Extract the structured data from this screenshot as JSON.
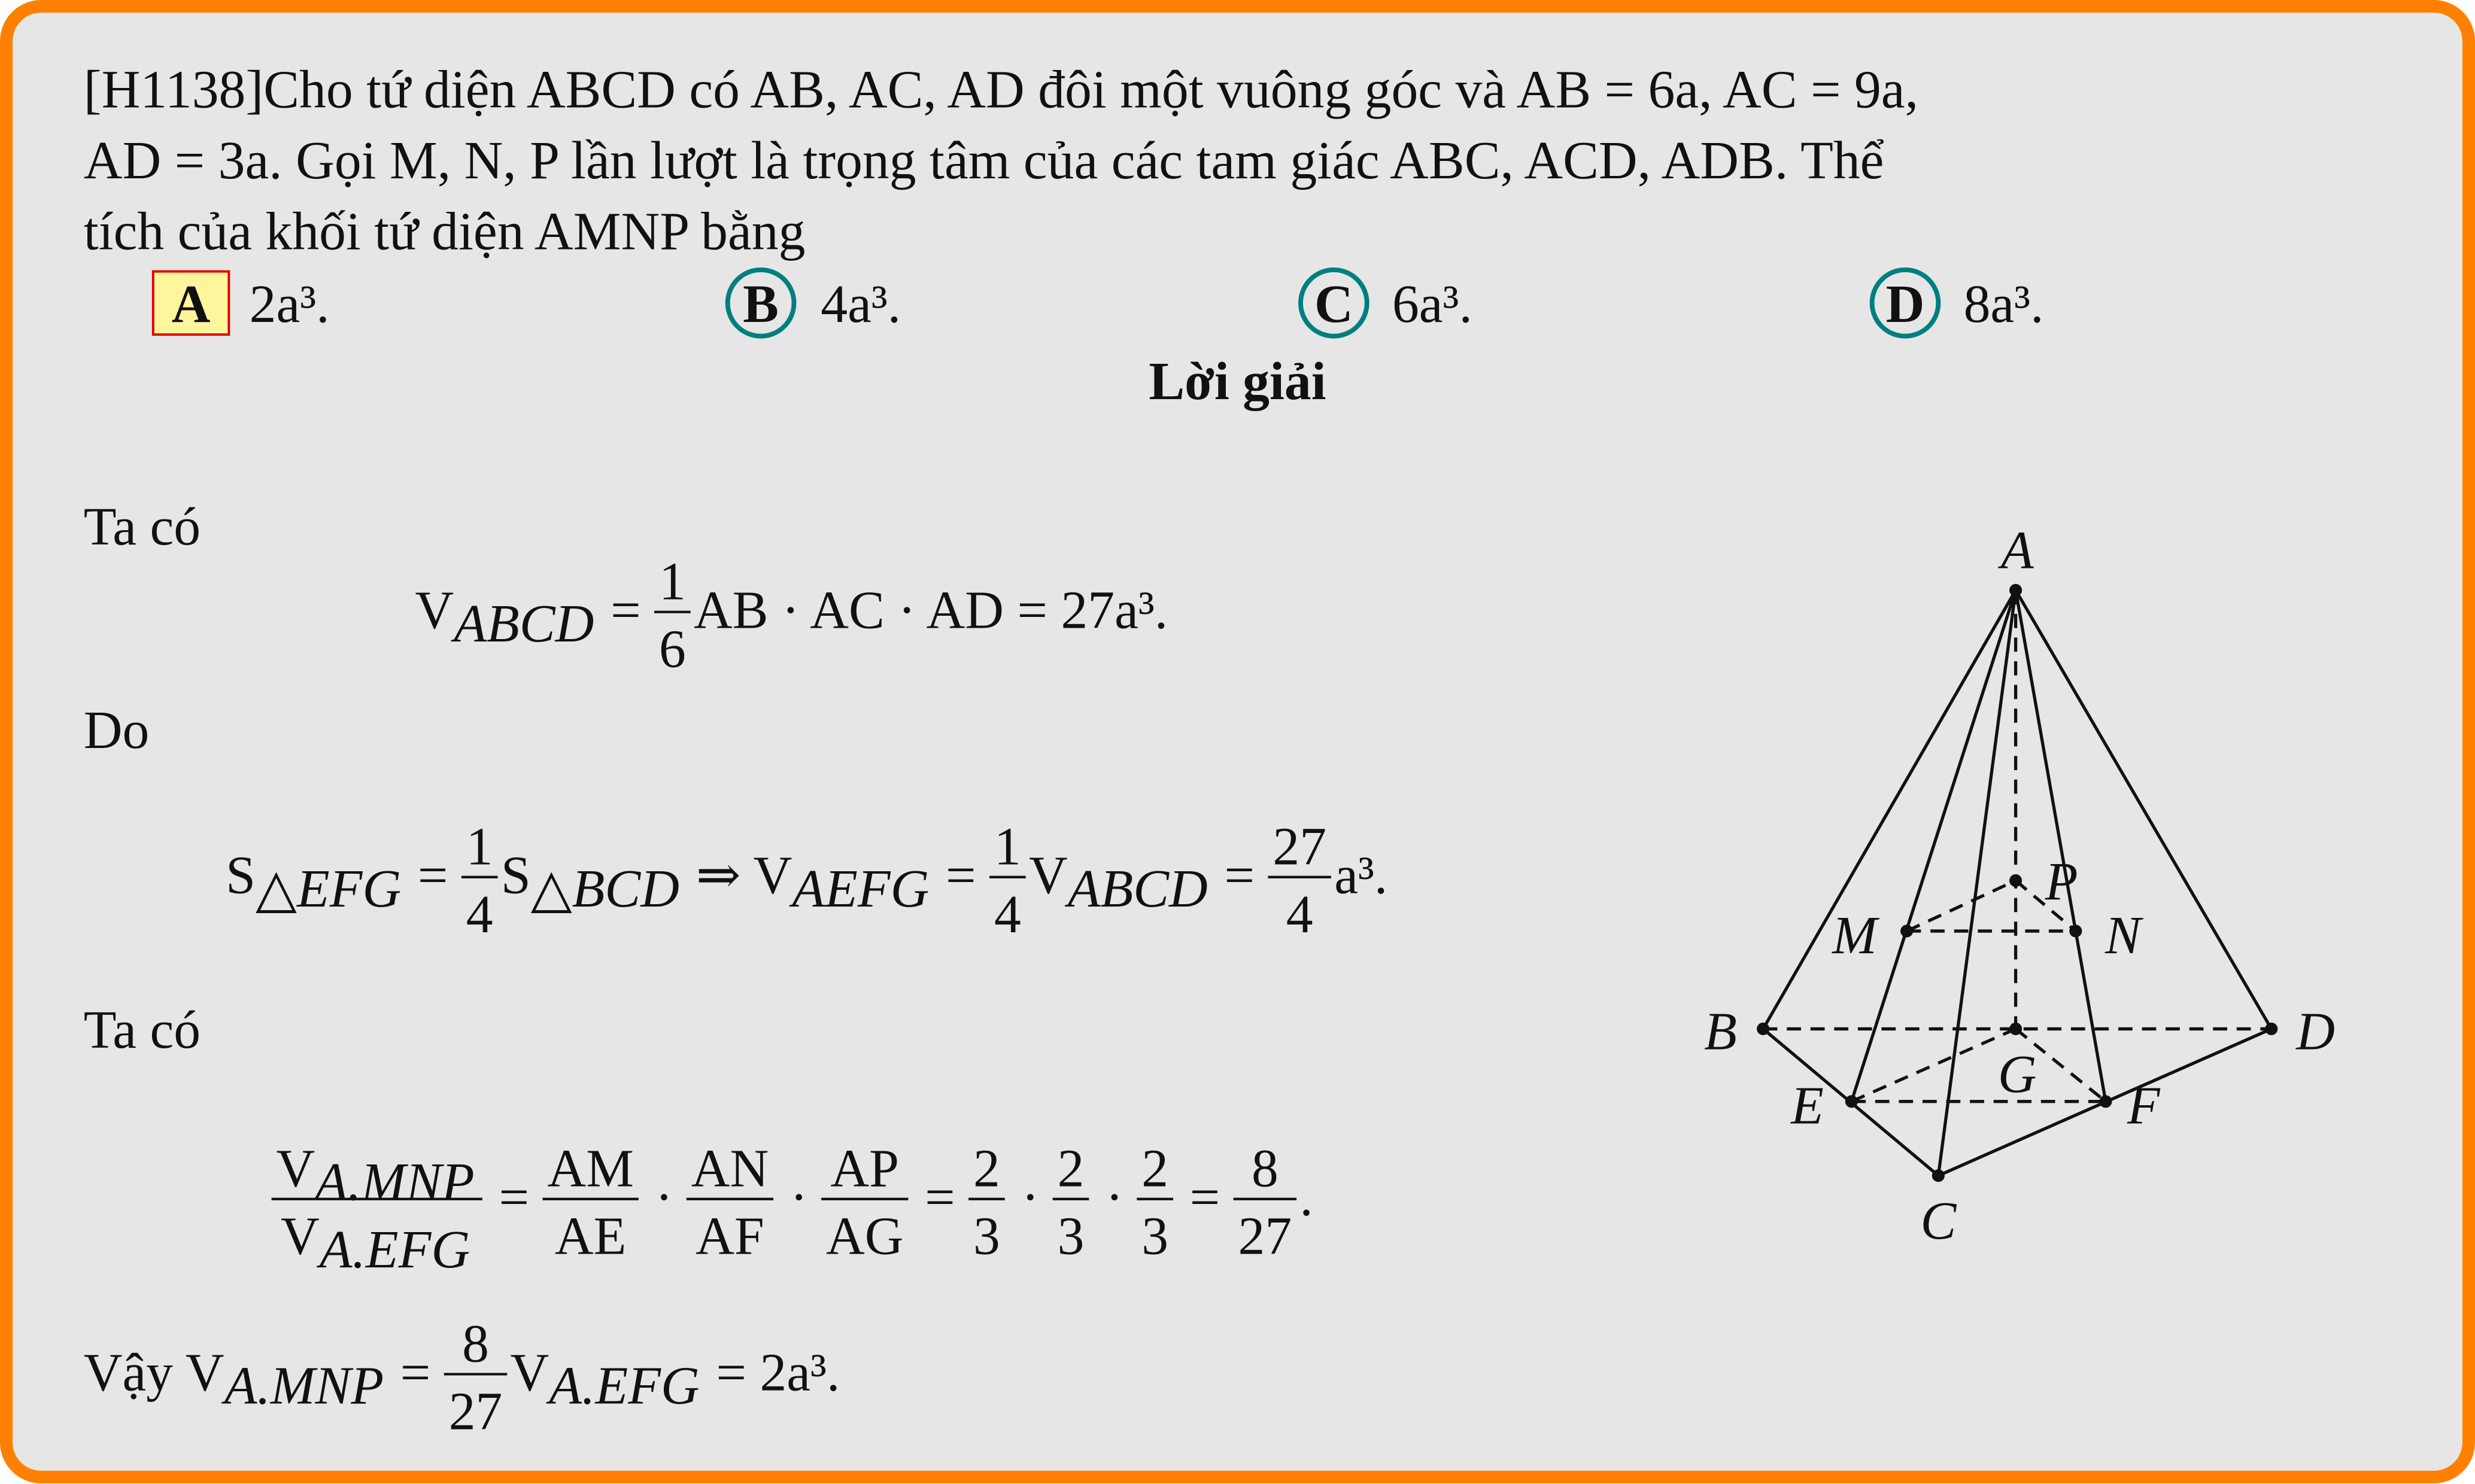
{
  "question": {
    "id": "[H1138]",
    "lines": [
      "Cho tứ diện ABCD có AB, AC, AD đôi một vuông góc và AB = 6a, AC = 9a,",
      "AD = 3a. Gọi M, N, P lần lượt là trọng tâm của các tam giác ABC, ACD, ADB. Thể",
      "tích của khối tứ diện AMNP bằng"
    ]
  },
  "options": [
    {
      "label": "A",
      "text": "2a³."
    },
    {
      "label": "B",
      "text": "4a³."
    },
    {
      "label": "C",
      "text": "6a³."
    },
    {
      "label": "D",
      "text": "8a³."
    }
  ],
  "answer": "A",
  "solution": {
    "title": "Lời giải",
    "steps": [
      {
        "text": "Ta có"
      },
      {
        "formula": [
          "V",
          {
            "sub": "ABCD"
          },
          " = ",
          {
            "num": [
              "1"
            ],
            "den": [
              "6"
            ]
          },
          "AB · AC · AD = 27a³."
        ]
      },
      {
        "text": "Do"
      },
      {
        "formula": [
          "S",
          {
            "sub": "△EFG"
          },
          " = ",
          {
            "num": [
              "1"
            ],
            "den": [
              "4"
            ]
          },
          "S",
          {
            "sub": "△BCD"
          },
          " ⇒ V",
          {
            "sub": "AEFG"
          },
          " = ",
          {
            "num": [
              "1"
            ],
            "den": [
              "4"
            ]
          },
          "V",
          {
            "sub": "ABCD"
          },
          " = ",
          {
            "num": [
              "27"
            ],
            "den": [
              "4"
            ]
          },
          "a³."
        ]
      },
      {
        "text": "Ta có"
      },
      {
        "formula": [
          {
            "num": [
              "V",
              {
                "sub": "A.MNP"
              }
            ],
            "den": [
              "V",
              {
                "sub": "A.EFG"
              }
            ]
          },
          " = ",
          {
            "num": [
              "AM"
            ],
            "den": [
              "AE"
            ]
          },
          " · ",
          {
            "num": [
              "AN"
            ],
            "den": [
              "AF"
            ]
          },
          " · ",
          {
            "num": [
              "AP"
            ],
            "den": [
              "AG"
            ]
          },
          " = ",
          {
            "num": [
              "2"
            ],
            "den": [
              "3"
            ]
          },
          " · ",
          {
            "num": [
              "2"
            ],
            "den": [
              "3"
            ]
          },
          " · ",
          {
            "num": [
              "2"
            ],
            "den": [
              "3"
            ]
          },
          " = ",
          {
            "num": [
              "8"
            ],
            "den": [
              "27"
            ]
          },
          "."
        ]
      },
      {
        "formula": [
          "Vậy V",
          {
            "sub": "A.MNP"
          },
          " = ",
          {
            "num": [
              "8"
            ],
            "den": [
              "27"
            ]
          },
          "V",
          {
            "sub": "A.EFG"
          },
          " = 2a³."
        ]
      }
    ]
  },
  "figure": {
    "points": [
      "A",
      "B",
      "C",
      "D",
      "E",
      "F",
      "G",
      "M",
      "N",
      "P"
    ]
  }
}
